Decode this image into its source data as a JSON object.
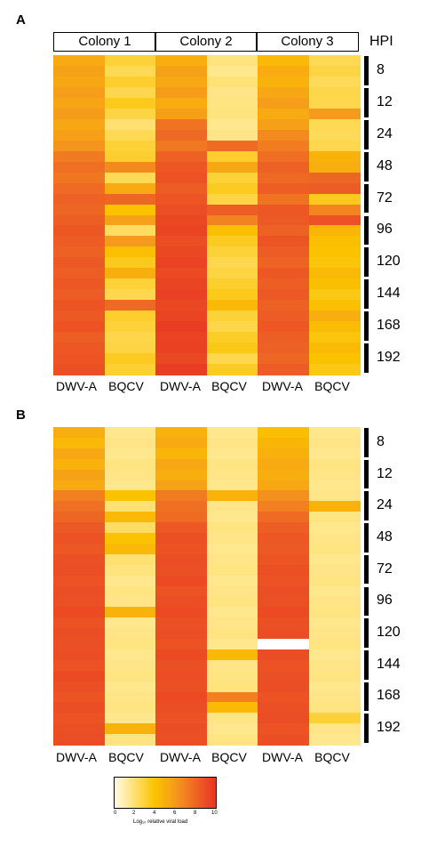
{
  "panels": [
    {
      "letter": "A",
      "colonies": [
        "Colony 1",
        "Colony 2",
        "Colony 3"
      ],
      "hpi_title": "HPI",
      "column_labels": [
        "DWV-A",
        "BQCV",
        "DWV-A",
        "BQCV",
        "DWV-A",
        "BQCV"
      ]
    },
    {
      "letter": "B",
      "column_labels": [
        "DWV-A",
        "BQCV",
        "DWV-A",
        "BQCV",
        "DWV-A",
        "BQCV"
      ]
    }
  ],
  "hpi_labels": [
    "8",
    "12",
    "24",
    "48",
    "72",
    "96",
    "120",
    "144",
    "168",
    "192"
  ],
  "legend": {
    "title": "Log₁₀ relative viral load",
    "ticks": [
      "0",
      "2",
      "4",
      "6",
      "8",
      "10"
    ],
    "range": [
      0,
      10
    ],
    "colors": [
      "#fffbe6",
      "#ffe070",
      "#fbc200",
      "#f59a1c",
      "#ee6624",
      "#e83323"
    ]
  },
  "chart_data": [
    {
      "type": "heatmap",
      "title": "A",
      "rows_per_timepoint": 3,
      "series": [
        {
          "name": "Colony 1 DWV-A",
          "values": [
            5.2,
            5.6,
            5.4,
            5.8,
            5.5,
            5.9,
            5.4,
            5.7,
            6.2,
            7.2,
            7.6,
            7.4,
            7.8,
            8.2,
            8.0,
            8.3,
            8.6,
            8.4,
            8.2,
            8.5,
            8.3,
            8.6,
            8.4,
            8.7,
            8.5,
            8.8,
            8.3,
            8.6,
            8.7,
            8.9
          ]
        },
        {
          "name": "Colony 1 BQCV",
          "values": [
            3.0,
            2.5,
            3.2,
            2.6,
            3.5,
            2.8,
            2.0,
            2.5,
            3.0,
            3.2,
            6.6,
            2.5,
            5.2,
            8.0,
            4.0,
            5.6,
            2.3,
            6.0,
            4.2,
            3.5,
            5.0,
            3.0,
            2.6,
            7.9,
            3.2,
            3.0,
            2.7,
            2.8,
            3.4,
            3.1
          ]
        },
        {
          "name": "Colony 2 DWV-A",
          "values": [
            5.0,
            5.6,
            5.3,
            5.9,
            5.1,
            5.7,
            7.5,
            7.9,
            7.3,
            8.2,
            8.6,
            8.8,
            8.4,
            8.7,
            9.0,
            9.2,
            9.3,
            9.0,
            9.2,
            9.4,
            9.1,
            9.3,
            9.5,
            9.2,
            9.3,
            9.6,
            9.4,
            9.5,
            9.2,
            9.6
          ]
        },
        {
          "name": "Colony 2 BQCV",
          "values": [
            1.8,
            1.5,
            1.9,
            1.6,
            1.7,
            1.8,
            1.5,
            1.6,
            7.8,
            3.2,
            5.4,
            3.0,
            3.4,
            2.8,
            8.3,
            6.9,
            4.2,
            3.4,
            3.0,
            2.6,
            2.8,
            3.2,
            3.5,
            4.5,
            3.0,
            2.7,
            3.3,
            3.6,
            2.6,
            3.4
          ]
        },
        {
          "name": "Colony 3 DWV-A",
          "values": [
            4.5,
            5.1,
            4.8,
            5.4,
            5.8,
            5.2,
            5.7,
            6.6,
            7.1,
            7.7,
            8.2,
            7.9,
            8.3,
            7.5,
            8.6,
            8.5,
            8.2,
            8.7,
            8.4,
            8.1,
            8.6,
            8.3,
            8.5,
            8.2,
            8.4,
            8.6,
            8.3,
            8.2,
            8.0,
            8.4
          ]
        },
        {
          "name": "Colony 3 BQCV",
          "values": [
            2.5,
            2.8,
            2.4,
            2.7,
            2.6,
            6.0,
            2.5,
            2.4,
            2.6,
            4.8,
            5.0,
            8.0,
            8.4,
            3.5,
            6.8,
            8.8,
            4.6,
            4.2,
            4.0,
            3.8,
            4.5,
            4.2,
            3.6,
            4.1,
            5.0,
            4.3,
            3.8,
            4.4,
            4.0,
            3.6
          ]
        }
      ]
    },
    {
      "type": "heatmap",
      "title": "B",
      "rows_per_timepoint": 3,
      "series": [
        {
          "name": "Colony 1 DWV-A",
          "values": [
            5.0,
            4.5,
            5.3,
            4.8,
            5.6,
            5.2,
            7.0,
            7.6,
            8.0,
            8.5,
            8.8,
            8.6,
            8.9,
            9.0,
            8.8,
            9.0,
            8.9,
            9.1,
            8.8,
            9.0,
            8.9,
            9.0,
            8.8,
            9.1,
            8.9,
            8.7,
            9.0,
            8.8,
            8.9,
            9.0
          ]
        },
        {
          "name": "Colony 1 BQCV",
          "values": [
            1.5,
            1.6,
            1.5,
            1.7,
            1.6,
            1.5,
            4.0,
            2.0,
            4.5,
            2.2,
            4.0,
            4.5,
            2.0,
            1.8,
            1.5,
            1.7,
            1.6,
            4.8,
            1.5,
            1.6,
            1.7,
            1.5,
            1.6,
            1.7,
            1.5,
            1.6,
            1.7,
            1.5,
            4.8,
            1.7
          ]
        },
        {
          "name": "Colony 2 DWV-A",
          "values": [
            4.8,
            5.2,
            4.6,
            5.4,
            5.0,
            5.6,
            7.2,
            7.6,
            7.8,
            8.6,
            8.9,
            8.8,
            9.0,
            8.9,
            9.1,
            8.8,
            9.0,
            9.1,
            8.9,
            9.0,
            8.8,
            9.1,
            8.9,
            9.0,
            8.9,
            9.1,
            9.0,
            8.8,
            9.0,
            8.9
          ]
        },
        {
          "name": "Colony 2 BQCV",
          "values": [
            1.5,
            1.6,
            1.5,
            1.7,
            1.6,
            1.5,
            4.8,
            1.6,
            1.5,
            1.7,
            1.6,
            1.5,
            1.6,
            1.7,
            1.5,
            1.6,
            1.7,
            1.5,
            1.6,
            1.7,
            1.5,
            4.5,
            1.6,
            1.7,
            1.8,
            7.0,
            4.5,
            1.6,
            1.5,
            1.7
          ]
        },
        {
          "name": "Colony 3 DWV-A",
          "values": [
            4.2,
            4.6,
            4.9,
            5.2,
            5.0,
            5.4,
            6.4,
            7.0,
            7.8,
            8.3,
            8.6,
            8.5,
            8.7,
            8.9,
            8.8,
            9.0,
            8.9,
            9.1,
            8.9,
            9.0,
            null,
            9.0,
            8.8,
            8.9,
            9.0,
            8.8,
            8.9,
            9.0,
            8.8,
            8.9
          ]
        },
        {
          "name": "Colony 3 BQCV",
          "values": [
            1.5,
            1.6,
            1.5,
            1.7,
            1.6,
            1.5,
            1.6,
            4.8,
            1.7,
            1.5,
            1.6,
            1.7,
            1.5,
            1.6,
            1.7,
            1.5,
            1.6,
            1.7,
            1.5,
            1.6,
            1.7,
            1.5,
            1.6,
            1.7,
            1.5,
            1.6,
            1.7,
            3.0,
            1.6,
            1.5
          ]
        }
      ]
    }
  ]
}
